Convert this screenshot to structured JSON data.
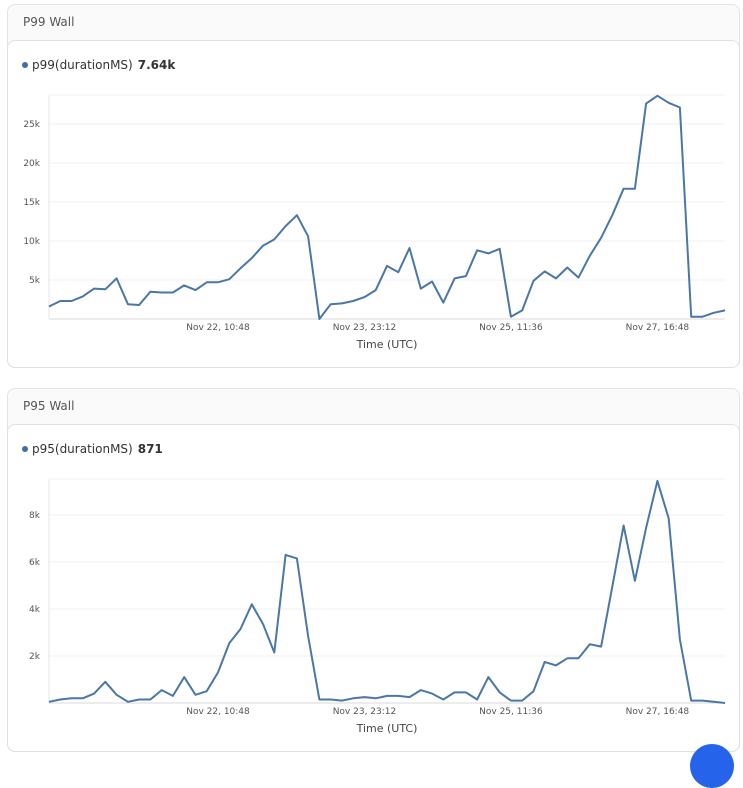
{
  "panels": [
    {
      "title": "P99 Wall",
      "legend_label": "p99(durationMS)",
      "legend_value": "7.64k"
    },
    {
      "title": "P95 Wall",
      "legend_label": "p95(durationMS)",
      "legend_value": "871"
    }
  ],
  "colors": {
    "line": "#4a77a6",
    "grid": "#f0f0f0",
    "fab": "#2563eb"
  },
  "chart_data": [
    {
      "type": "line",
      "title": "P99 Wall",
      "xlabel": "Time (UTC)",
      "ylabel": "",
      "ylim": [
        0,
        28700
      ],
      "grid": true,
      "legend": "top-left",
      "series": [
        {
          "name": "p99(durationMS)",
          "values": [
            1600,
            2300,
            2300,
            2900,
            3900,
            3800,
            5200,
            1900,
            1800,
            3500,
            3400,
            3400,
            4300,
            3700,
            4700,
            4700,
            5100,
            6500,
            7800,
            9400,
            10200,
            11900,
            13300,
            10600,
            0,
            1900,
            2000,
            2300,
            2800,
            3700,
            6800,
            6000,
            9100,
            3900,
            4800,
            2100,
            5200,
            5500,
            8800,
            8400,
            9000,
            300,
            1100,
            4900,
            6100,
            5200,
            6600,
            5300,
            8100,
            10400,
            13300,
            16700,
            16700,
            27600,
            28600,
            27700,
            27100,
            300,
            300,
            800,
            1100
          ]
        }
      ],
      "y_ticks": [
        {
          "value": 5000,
          "label": "5k"
        },
        {
          "value": 10000,
          "label": "10k"
        },
        {
          "value": 15000,
          "label": "15k"
        },
        {
          "value": 20000,
          "label": "20k"
        },
        {
          "value": 25000,
          "label": "25k"
        }
      ],
      "x_ticks": [
        {
          "point": 15,
          "label": "Nov 22, 10:48"
        },
        {
          "point": 28,
          "label": "Nov 23, 23:12"
        },
        {
          "point": 41,
          "label": "Nov 25, 11:36"
        },
        {
          "point": 54,
          "label": "Nov 27, 16:48"
        }
      ]
    },
    {
      "type": "line",
      "title": "P95 Wall",
      "xlabel": "Time (UTC)",
      "ylabel": "",
      "ylim": [
        0,
        9530
      ],
      "grid": true,
      "legend": "top-left",
      "series": [
        {
          "name": "p95(durationMS)",
          "values": [
            50,
            150,
            200,
            200,
            400,
            900,
            350,
            50,
            150,
            150,
            550,
            300,
            1100,
            350,
            500,
            1300,
            2550,
            3150,
            4200,
            3350,
            2150,
            6300,
            6150,
            2850,
            150,
            150,
            100,
            200,
            250,
            200,
            300,
            300,
            250,
            550,
            400,
            150,
            450,
            450,
            150,
            1100,
            450,
            100,
            100,
            500,
            1750,
            1600,
            1900,
            1900,
            2500,
            2400,
            4950,
            7550,
            5200,
            7450,
            9450,
            7850,
            2700,
            100,
            100,
            50,
            0
          ]
        }
      ],
      "y_ticks": [
        {
          "value": 2000,
          "label": "2k"
        },
        {
          "value": 4000,
          "label": "4k"
        },
        {
          "value": 6000,
          "label": "6k"
        },
        {
          "value": 8000,
          "label": "8k"
        }
      ],
      "x_ticks": [
        {
          "point": 15,
          "label": "Nov 22, 10:48"
        },
        {
          "point": 28,
          "label": "Nov 23, 23:12"
        },
        {
          "point": 41,
          "label": "Nov 25, 11:36"
        },
        {
          "point": 54,
          "label": "Nov 27, 16:48"
        }
      ]
    }
  ]
}
